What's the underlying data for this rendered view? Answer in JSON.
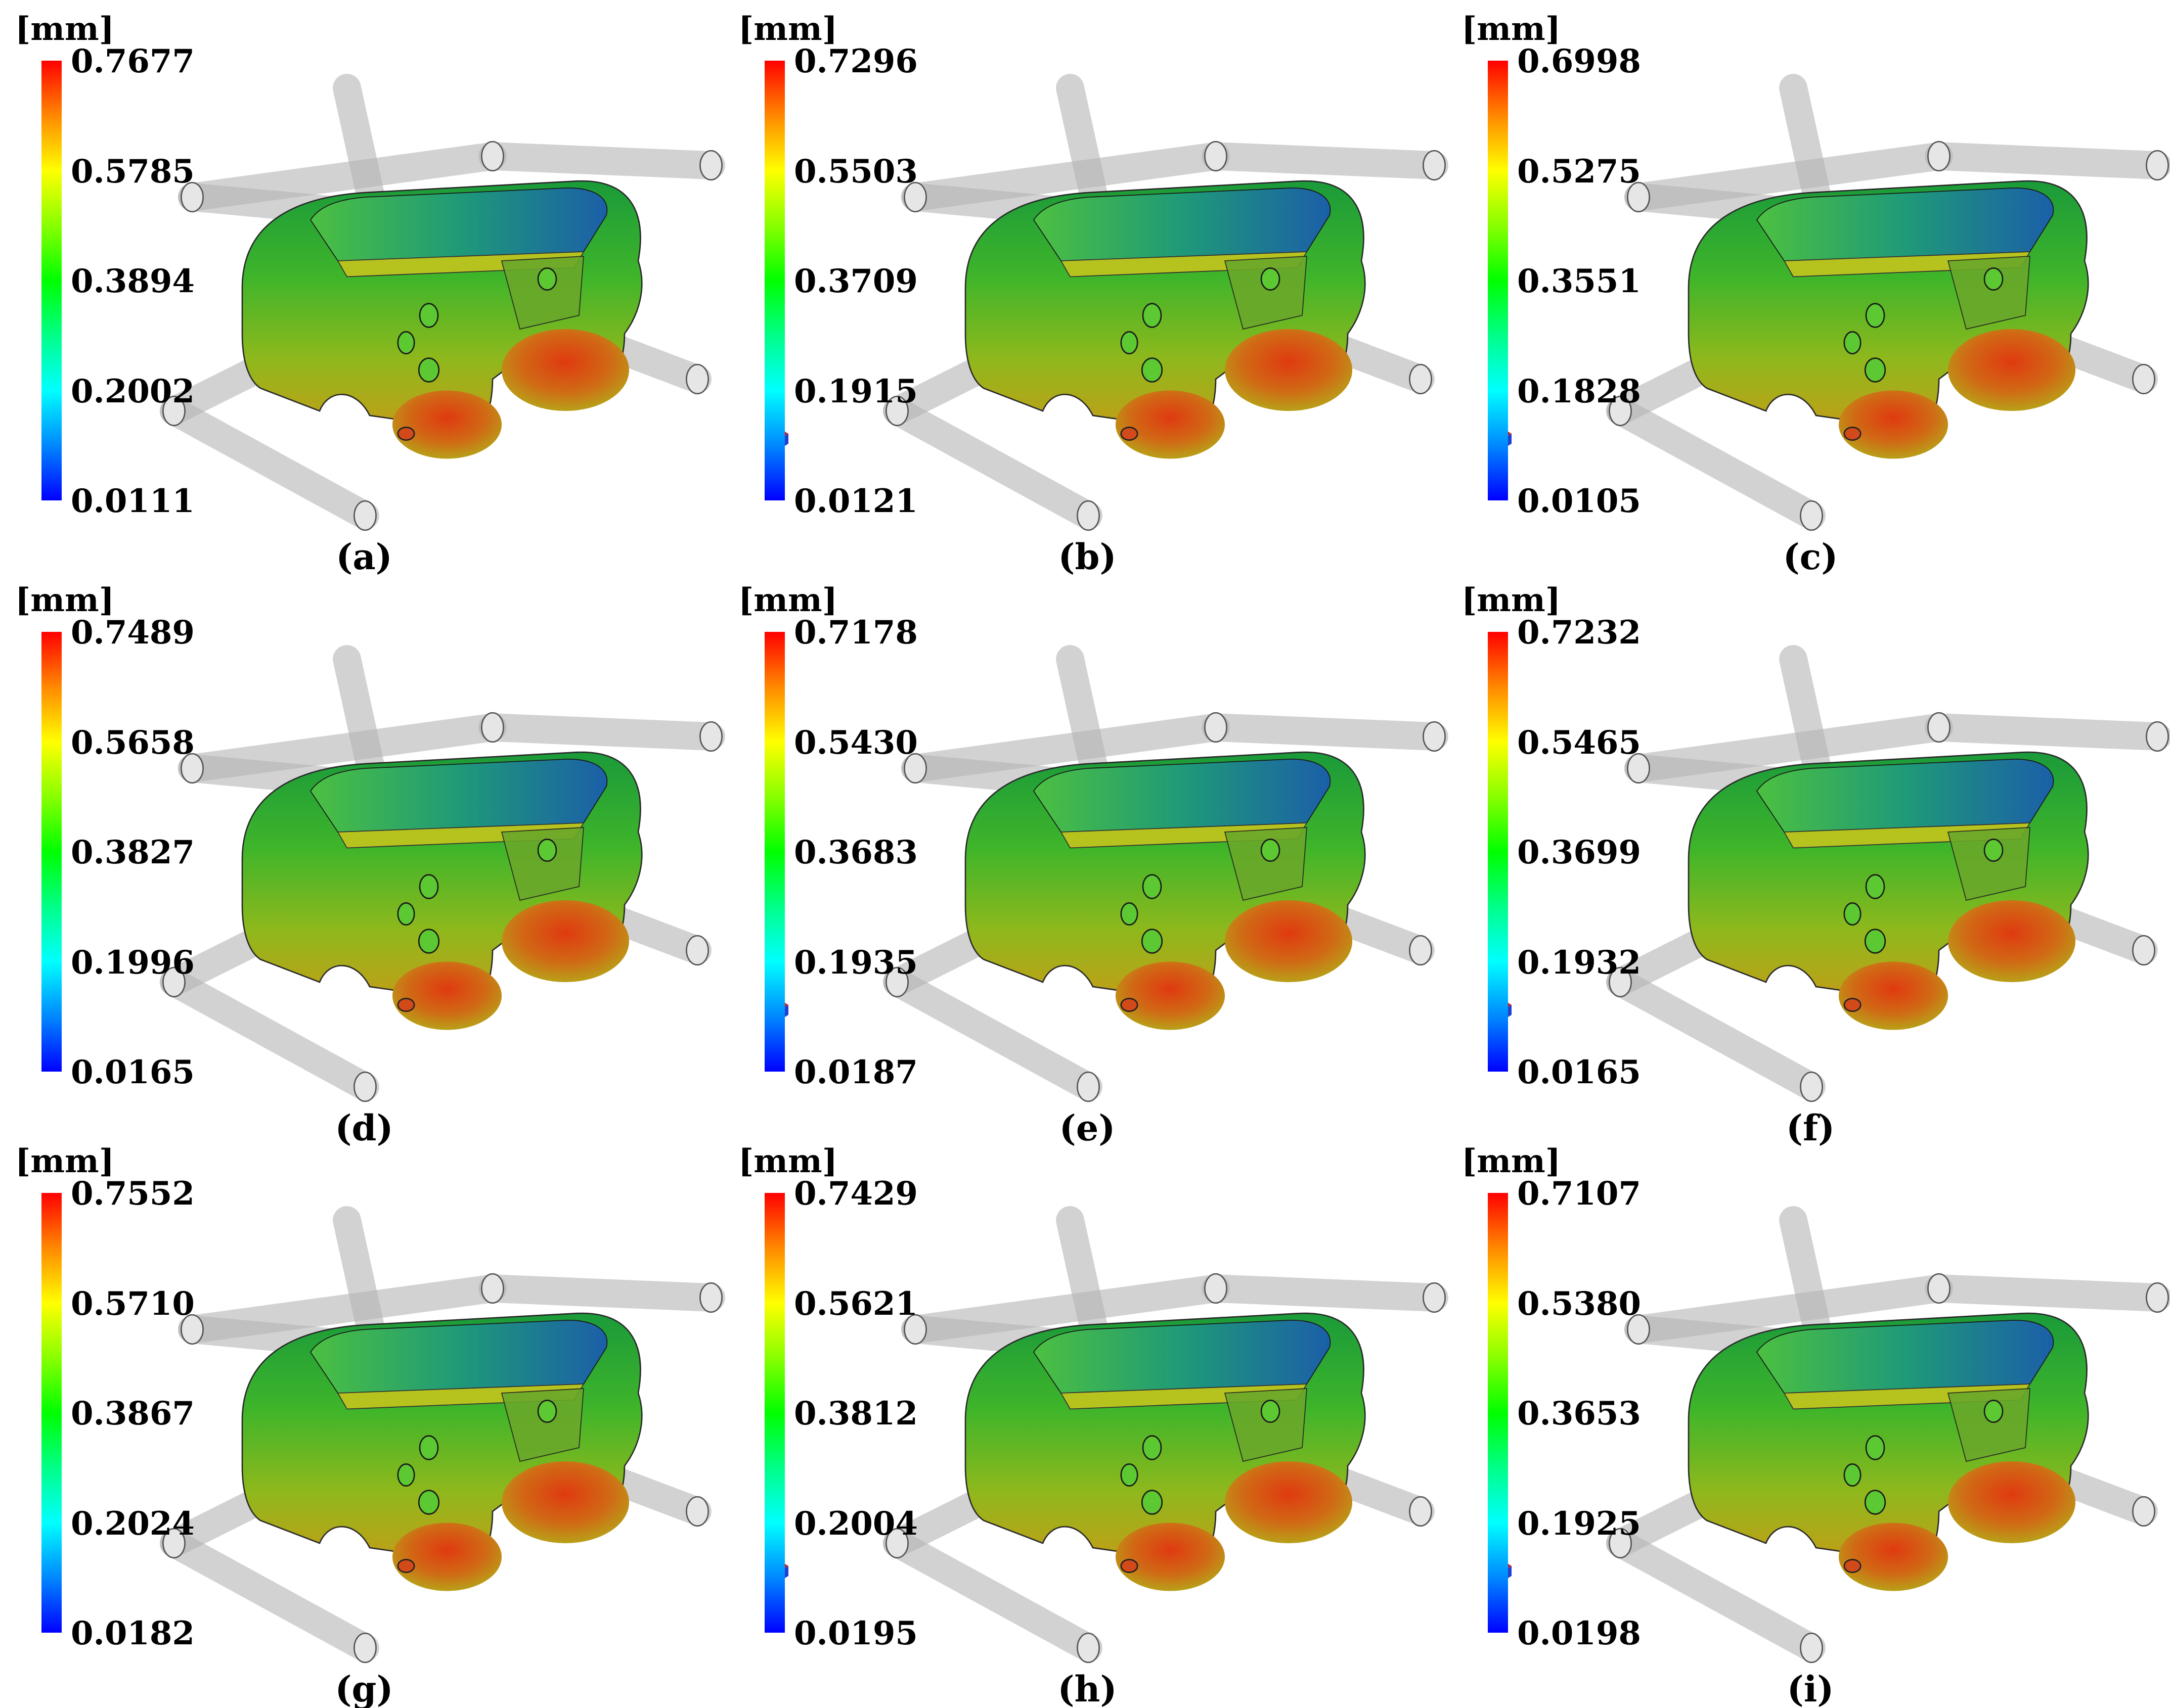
{
  "unit_label": "[mm]",
  "panels": [
    {
      "caption": "(a)",
      "ticks": [
        "0.7677",
        "0.5785",
        "0.3894",
        "0.2002",
        "0.0111"
      ]
    },
    {
      "caption": "(b)",
      "ticks": [
        "0.7296",
        "0.5503",
        "0.3709",
        "0.1915",
        "0.0121"
      ]
    },
    {
      "caption": "(c)",
      "ticks": [
        "0.6998",
        "0.5275",
        "0.3551",
        "0.1828",
        "0.0105"
      ]
    },
    {
      "caption": "(d)",
      "ticks": [
        "0.7489",
        "0.5658",
        "0.3827",
        "0.1996",
        "0.0165"
      ]
    },
    {
      "caption": "(e)",
      "ticks": [
        "0.7178",
        "0.5430",
        "0.3683",
        "0.1935",
        "0.0187"
      ]
    },
    {
      "caption": "(f)",
      "ticks": [
        "0.7232",
        "0.5465",
        "0.3699",
        "0.1932",
        "0.0165"
      ]
    },
    {
      "caption": "(g)",
      "ticks": [
        "0.7552",
        "0.5710",
        "0.3867",
        "0.2024",
        "0.0182"
      ]
    },
    {
      "caption": "(h)",
      "ticks": [
        "0.7429",
        "0.5621",
        "0.3812",
        "0.2004",
        "0.0195"
      ]
    },
    {
      "caption": "(i)",
      "ticks": [
        "0.7107",
        "0.5380",
        "0.3653",
        "0.1925",
        "0.0198"
      ]
    }
  ]
}
